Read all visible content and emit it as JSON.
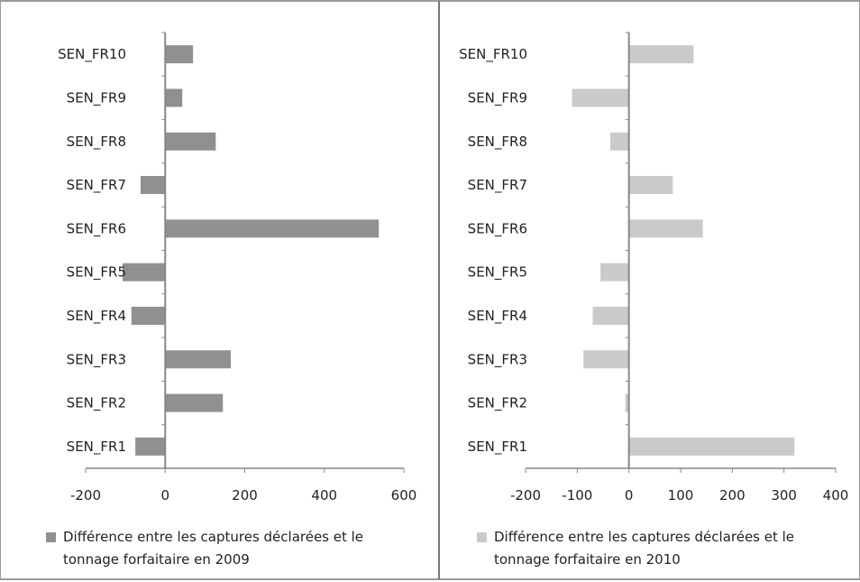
{
  "chart_data": [
    {
      "type": "bar",
      "orientation": "horizontal",
      "categories": [
        "SEN_FR1",
        "SEN_FR2",
        "SEN_FR3",
        "SEN_FR4",
        "SEN_FR5",
        "SEN_FR6",
        "SEN_FR7",
        "SEN_FR8",
        "SEN_FR9",
        "SEN_FR10"
      ],
      "series": [
        {
          "name": "Différence entre les captures déclarées et le tonnage forfaitaire en 2009",
          "values": [
            -75,
            145,
            165,
            -85,
            -107,
            537,
            -62,
            127,
            43,
            70
          ],
          "color": "#909090"
        }
      ],
      "xlim": [
        -200,
        600
      ],
      "xticks": [
        "-200",
        "0",
        "200",
        "400",
        "600"
      ],
      "xtick_values": [
        -200,
        0,
        200,
        400,
        600
      ],
      "grid": false,
      "legend": "bottom",
      "title": "",
      "xlabel": "",
      "ylabel": ""
    },
    {
      "type": "bar",
      "orientation": "horizontal",
      "categories": [
        "SEN_FR1",
        "SEN_FR2",
        "SEN_FR3",
        "SEN_FR4",
        "SEN_FR5",
        "SEN_FR6",
        "SEN_FR7",
        "SEN_FR8",
        "SEN_FR9",
        "SEN_FR10"
      ],
      "series": [
        {
          "name": "Différence entre les captures déclarées et le tonnage forfaitaire en 2010",
          "values": [
            320,
            -7,
            -88,
            -70,
            -55,
            143,
            85,
            -36,
            -110,
            125
          ],
          "color": "#cacaca"
        }
      ],
      "xlim": [
        -200,
        400
      ],
      "xticks": [
        "-200",
        "-100",
        "0",
        "100",
        "200",
        "300",
        "400"
      ],
      "xtick_values": [
        -200,
        -100,
        0,
        100,
        200,
        300,
        400
      ],
      "grid": false,
      "legend": "bottom",
      "title": "",
      "xlabel": "",
      "ylabel": ""
    }
  ]
}
